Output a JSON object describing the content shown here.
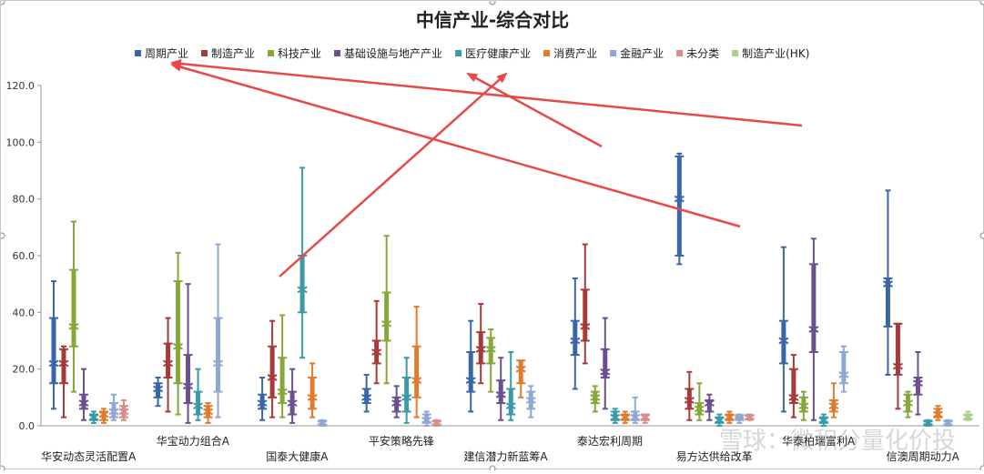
{
  "chart_data": {
    "type": "box",
    "title": "中信产业-综合对比",
    "xlabel": "",
    "ylabel": "",
    "ylim": [
      0,
      120
    ],
    "yticks": [
      "0.0",
      "20.0",
      "40.0",
      "60.0",
      "80.0",
      "100.0",
      "120.0"
    ],
    "grid": false,
    "legend_position": "top",
    "categories": [
      "华安动态灵活配置A",
      "华宝动力组合A",
      "国泰大健康A",
      "平安策略先锋",
      "建信潜力新蓝筹A",
      "泰达宏利周期",
      "易方达供给改革",
      "华泰柏瑞富利A",
      "信澳周期动力A"
    ],
    "series": [
      {
        "name": "周期产业",
        "color": "#3a66a7",
        "values": [
          {
            "min": 6,
            "q1": 15,
            "median": 22,
            "q3": 38,
            "max": 51
          },
          {
            "min": 7,
            "q1": 10,
            "median": 13,
            "q3": 15,
            "max": 17
          },
          {
            "min": 2,
            "q1": 6,
            "median": 8,
            "q3": 11,
            "max": 17
          },
          {
            "min": 5,
            "q1": 8,
            "median": 10,
            "q3": 13,
            "max": 18
          },
          {
            "min": 5,
            "q1": 12,
            "median": 16,
            "q3": 26,
            "max": 37
          },
          {
            "min": 13,
            "q1": 25,
            "median": 30,
            "q3": 37,
            "max": 52
          },
          {
            "min": 57,
            "q1": 60,
            "median": 80,
            "q3": 95,
            "max": 96
          },
          {
            "min": 5,
            "q1": 22,
            "median": 30,
            "q3": 37,
            "max": 63
          },
          {
            "min": 18,
            "q1": 35,
            "median": 50,
            "q3": 52,
            "max": 83
          }
        ]
      },
      {
        "name": "制造产业",
        "color": "#a63a3a",
        "values": [
          {
            "min": 3,
            "q1": 15,
            "median": 22,
            "q3": 27,
            "max": 28
          },
          {
            "min": 5,
            "q1": 17,
            "median": 22,
            "q3": 29,
            "max": 38
          },
          {
            "min": 3,
            "q1": 10,
            "median": 17,
            "q3": 28,
            "max": 37
          },
          {
            "min": 15,
            "q1": 22,
            "median": 26,
            "q3": 30,
            "max": 44
          },
          {
            "min": 15,
            "q1": 22,
            "median": 27,
            "q3": 33,
            "max": 43
          },
          {
            "min": 22,
            "q1": 30,
            "median": 35,
            "q3": 48,
            "max": 64
          },
          {
            "min": 2,
            "q1": 6,
            "median": 9,
            "q3": 13,
            "max": 19
          },
          {
            "min": 3,
            "q1": 8,
            "median": 10,
            "q3": 20,
            "max": 25
          },
          {
            "min": 6,
            "q1": 18,
            "median": 21,
            "q3": 36,
            "max": 36
          }
        ]
      },
      {
        "name": "科技产业",
        "color": "#86a83a",
        "values": [
          {
            "min": 12,
            "q1": 28,
            "median": 35,
            "q3": 55,
            "max": 72
          },
          {
            "min": 4,
            "q1": 15,
            "median": 28,
            "q3": 51,
            "max": 61
          },
          {
            "min": 3,
            "q1": 8,
            "median": 12,
            "q3": 24,
            "max": 39
          },
          {
            "min": 15,
            "q1": 30,
            "median": 36,
            "q3": 47,
            "max": 67
          },
          {
            "min": 12,
            "q1": 22,
            "median": 27,
            "q3": 31,
            "max": 34
          },
          {
            "min": 5,
            "q1": 8,
            "median": 10,
            "q3": 12,
            "max": 14
          },
          {
            "min": 2,
            "q1": 4,
            "median": 6,
            "q3": 8,
            "max": 15
          },
          {
            "min": 2,
            "q1": 5,
            "median": 7,
            "q3": 10,
            "max": 12
          },
          {
            "min": 3,
            "q1": 5,
            "median": 8,
            "q3": 11,
            "max": 12
          }
        ]
      },
      {
        "name": "基础设施与地产产业",
        "color": "#6b4f8f",
        "values": [
          {
            "min": 2,
            "q1": 6,
            "median": 8,
            "q3": 11,
            "max": 20
          },
          {
            "min": 1,
            "q1": 8,
            "median": 14,
            "q3": 25,
            "max": 50
          },
          {
            "min": 1,
            "q1": 4,
            "median": 8,
            "q3": 12,
            "max": 20
          },
          {
            "min": 3,
            "q1": 5,
            "median": 8,
            "q3": 10,
            "max": 14
          },
          {
            "min": 2,
            "q1": 8,
            "median": 11,
            "q3": 16,
            "max": 24
          },
          {
            "min": 6,
            "q1": 17,
            "median": 19,
            "q3": 27,
            "max": 38
          },
          {
            "min": 2,
            "q1": 5,
            "median": 8,
            "q3": 9,
            "max": 11
          },
          {
            "min": 2,
            "q1": 26,
            "median": 34,
            "q3": 57,
            "max": 66
          },
          {
            "min": 4,
            "q1": 11,
            "median": 15,
            "q3": 17,
            "max": 26
          }
        ]
      },
      {
        "name": "医疗健康产业",
        "color": "#3a9aa8",
        "values": [
          {
            "min": 1,
            "q1": 2,
            "median": 3,
            "q3": 4,
            "max": 5
          },
          {
            "min": 2,
            "q1": 4,
            "median": 7,
            "q3": 12,
            "max": 20
          },
          {
            "min": 24,
            "q1": 40,
            "median": 48,
            "q3": 60,
            "max": 91
          },
          {
            "min": 1,
            "q1": 5,
            "median": 10,
            "q3": 17,
            "max": 24
          },
          {
            "min": 2,
            "q1": 4,
            "median": 7,
            "q3": 13,
            "max": 26
          },
          {
            "min": 1,
            "q1": 2,
            "median": 3,
            "q3": 5,
            "max": 6
          },
          {
            "min": 0,
            "q1": 1,
            "median": 2,
            "q3": 3,
            "max": 4
          },
          {
            "min": 0,
            "q1": 1,
            "median": 2,
            "q3": 3,
            "max": 4
          },
          {
            "min": 0,
            "q1": 0.5,
            "median": 1,
            "q3": 1.5,
            "max": 2
          }
        ]
      },
      {
        "name": "消费产业",
        "color": "#e07b2e",
        "values": [
          {
            "min": 1,
            "q1": 2,
            "median": 4,
            "q3": 5,
            "max": 6
          },
          {
            "min": 1,
            "q1": 3,
            "median": 5,
            "q3": 7,
            "max": 8
          },
          {
            "min": 3,
            "q1": 6,
            "median": 10,
            "q3": 17,
            "max": 22
          },
          {
            "min": 3,
            "q1": 10,
            "median": 16,
            "q3": 28,
            "max": 42
          },
          {
            "min": 10,
            "q1": 15,
            "median": 20,
            "q3": 23,
            "max": 23
          },
          {
            "min": 1,
            "q1": 2,
            "median": 3,
            "q3": 4,
            "max": 5
          },
          {
            "min": 1,
            "q1": 2,
            "median": 3,
            "q3": 4,
            "max": 5
          },
          {
            "min": 3,
            "q1": 5,
            "median": 7,
            "q3": 9,
            "max": 15
          },
          {
            "min": 2,
            "q1": 3,
            "median": 4,
            "q3": 6,
            "max": 7
          }
        ]
      },
      {
        "name": "金融产业",
        "color": "#8fa8d3",
        "values": [
          {
            "min": 2,
            "q1": 3,
            "median": 5,
            "q3": 8,
            "max": 11
          },
          {
            "min": 3,
            "q1": 12,
            "median": 22,
            "q3": 38,
            "max": 64
          },
          {
            "min": 0,
            "q1": 0.5,
            "median": 1,
            "q3": 1.5,
            "max": 2
          },
          {
            "min": 0,
            "q1": 1,
            "median": 2,
            "q3": 4,
            "max": 5
          },
          {
            "min": 3,
            "q1": 6,
            "median": 9,
            "q3": 12,
            "max": 14
          },
          {
            "min": 1,
            "q1": 2,
            "median": 3,
            "q3": 5,
            "max": 10
          },
          {
            "min": 1,
            "q1": 2,
            "median": 3,
            "q3": 3,
            "max": 4
          },
          {
            "min": 12,
            "q1": 15,
            "median": 18,
            "q3": 26,
            "max": 28
          },
          {
            "min": 0,
            "q1": 0.5,
            "median": 1,
            "q3": 1.5,
            "max": 2
          }
        ]
      },
      {
        "name": "未分类",
        "color": "#d98c8c",
        "values": [
          {
            "min": 2,
            "q1": 3,
            "median": 5,
            "q3": 7,
            "max": 9
          },
          null,
          null,
          {
            "min": 0,
            "q1": 0.5,
            "median": 1,
            "q3": 1.5,
            "max": 2
          },
          null,
          {
            "min": 1,
            "q1": 2,
            "median": 3,
            "q3": 4,
            "max": 4
          },
          {
            "min": 2,
            "q1": 2.5,
            "median": 3,
            "q3": 3.5,
            "max": 4
          },
          null,
          null
        ]
      },
      {
        "name": "制造产业(HK)",
        "color": "#a8d08d",
        "values": [
          null,
          null,
          null,
          null,
          null,
          null,
          null,
          null,
          {
            "min": 2,
            "q1": 2.5,
            "median": 3,
            "q3": 4,
            "max": 5
          }
        ]
      }
    ]
  },
  "watermark": {
    "text": "雪球：微积分量化价投",
    "color": "#8a8a8a"
  },
  "annotations": {
    "arrow_color": "#e84848"
  }
}
